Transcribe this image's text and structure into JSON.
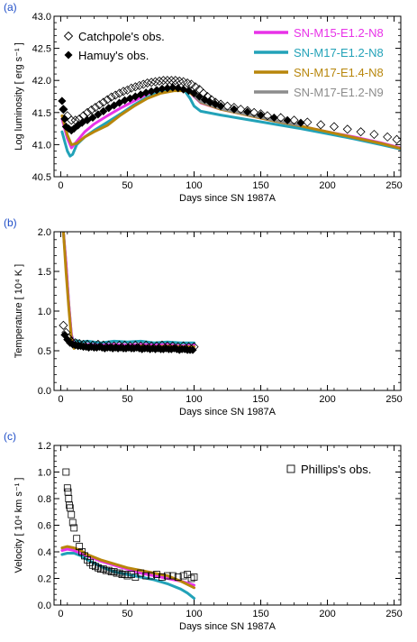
{
  "chart_data": [
    {
      "panel_label": "(a)",
      "type": "line",
      "xlabel": "Days since SN 1987A",
      "ylabel": "Log luminosity [ erg s⁻¹ ]",
      "xlim": [
        -5,
        255
      ],
      "ylim": [
        40.5,
        43.0
      ],
      "xticks": [
        0,
        50,
        100,
        150,
        200,
        250
      ],
      "yticks": [
        40.5,
        41.0,
        41.5,
        42.0,
        42.5,
        43.0
      ],
      "ytick_labels": [
        "40.5",
        "41.0",
        "41.5",
        "42.0",
        "42.5",
        "43.0"
      ],
      "legend_markers": [
        {
          "name": "Catchpole's obs.",
          "marker": "open-diamond"
        },
        {
          "name": "Hamuy's obs.",
          "marker": "filled-diamond"
        }
      ],
      "legend_lines": [
        {
          "name": "SN-M15-E1.2-N8",
          "color": "#e832e8"
        },
        {
          "name": "SN-M17-E1.2-N8",
          "color": "#22a2b8"
        },
        {
          "name": "SN-M17-E1.4-N8",
          "color": "#b8860b"
        },
        {
          "name": "SN-M17-E1.2-N9",
          "color": "#8c8c8c"
        }
      ],
      "series": [
        {
          "name": "SN-M15-E1.2-N8",
          "color": "#e832e8",
          "width": 3,
          "x": [
            1,
            3,
            5,
            8,
            12,
            18,
            25,
            35,
            45,
            55,
            65,
            75,
            85,
            95,
            100,
            105,
            120,
            140,
            160,
            180,
            200,
            220,
            240,
            255
          ],
          "y": [
            41.4,
            41.25,
            41.1,
            40.95,
            41.05,
            41.2,
            41.32,
            41.45,
            41.57,
            41.68,
            41.79,
            41.86,
            41.88,
            41.85,
            41.75,
            41.65,
            41.55,
            41.46,
            41.37,
            41.29,
            41.2,
            41.12,
            41.03,
            40.95
          ]
        },
        {
          "name": "SN-M17-E1.2-N8",
          "color": "#22a2b8",
          "width": 3,
          "x": [
            1,
            3,
            5,
            7,
            9,
            12,
            18,
            25,
            35,
            45,
            55,
            65,
            75,
            85,
            93,
            97,
            100,
            105,
            120,
            140,
            160,
            180,
            200,
            220,
            240,
            255
          ],
          "y": [
            41.2,
            41.05,
            40.9,
            40.82,
            40.85,
            41.0,
            41.12,
            41.22,
            41.35,
            41.48,
            41.62,
            41.74,
            41.83,
            41.88,
            41.84,
            41.72,
            41.6,
            41.52,
            41.46,
            41.39,
            41.32,
            41.25,
            41.17,
            41.09,
            41.0,
            40.93
          ]
        },
        {
          "name": "SN-M17-E1.4-N8",
          "color": "#b8860b",
          "width": 3,
          "x": [
            1,
            3,
            5,
            8,
            12,
            18,
            25,
            35,
            45,
            55,
            65,
            75,
            85,
            95,
            100,
            105,
            120,
            140,
            160,
            180,
            200,
            220,
            240,
            255
          ],
          "y": [
            41.45,
            41.3,
            41.15,
            41.0,
            41.02,
            41.12,
            41.2,
            41.3,
            41.46,
            41.6,
            41.72,
            41.8,
            41.84,
            41.84,
            41.76,
            41.66,
            41.55,
            41.46,
            41.37,
            41.29,
            41.2,
            41.11,
            41.02,
            40.94
          ]
        },
        {
          "name": "SN-M17-E1.2-N9",
          "color": "#8c8c8c",
          "width": 3,
          "x": [
            100,
            105,
            120,
            140,
            160,
            180
          ],
          "y": [
            41.76,
            41.67,
            41.56,
            41.47,
            41.38,
            41.3
          ]
        }
      ],
      "scatter": [
        {
          "name": "Hamuy's obs.",
          "marker": "filled-diamond",
          "x": [
            1,
            2,
            3,
            4,
            6,
            8,
            10,
            13,
            16,
            20,
            24,
            28,
            32,
            36,
            40,
            44,
            48,
            52,
            56,
            60,
            64,
            68,
            72,
            76,
            80,
            84,
            88,
            92,
            96,
            100,
            104,
            108,
            112,
            116,
            120,
            130,
            140,
            150,
            160,
            170,
            180
          ],
          "y": [
            41.68,
            41.55,
            41.4,
            41.28,
            41.25,
            41.22,
            41.25,
            41.3,
            41.34,
            41.38,
            41.42,
            41.47,
            41.52,
            41.57,
            41.61,
            41.65,
            41.69,
            41.72,
            41.75,
            41.78,
            41.81,
            41.83,
            41.85,
            41.87,
            41.88,
            41.89,
            41.88,
            41.86,
            41.84,
            41.8,
            41.75,
            41.7,
            41.66,
            41.63,
            41.6,
            41.55,
            41.51,
            41.46,
            41.42,
            41.38,
            41.34
          ]
        },
        {
          "name": "Catchpole's obs.",
          "marker": "open-diamond",
          "x": [
            2,
            5,
            8,
            11,
            14,
            17,
            20,
            23,
            26,
            29,
            32,
            35,
            38,
            41,
            44,
            47,
            50,
            53,
            56,
            59,
            62,
            65,
            68,
            71,
            74,
            77,
            80,
            83,
            86,
            89,
            92,
            95,
            98,
            101,
            104,
            107,
            110,
            113,
            116,
            120,
            125,
            130,
            135,
            140,
            145,
            150,
            155,
            165,
            175,
            185,
            195,
            205,
            215,
            225,
            235,
            245,
            252
          ],
          "y": [
            41.55,
            41.45,
            41.38,
            41.38,
            41.4,
            41.45,
            41.5,
            41.54,
            41.58,
            41.62,
            41.66,
            41.7,
            41.74,
            41.77,
            41.8,
            41.83,
            41.85,
            41.88,
            41.9,
            41.92,
            41.94,
            41.96,
            41.97,
            41.98,
            41.99,
            42.0,
            42.0,
            42.0,
            42.0,
            41.99,
            41.98,
            41.96,
            41.94,
            41.9,
            41.86,
            41.8,
            41.75,
            41.7,
            41.66,
            41.63,
            41.6,
            41.58,
            41.55,
            41.53,
            41.5,
            41.48,
            41.45,
            41.42,
            41.38,
            41.35,
            41.31,
            41.28,
            41.24,
            41.2,
            41.16,
            41.12,
            41.08
          ]
        }
      ]
    },
    {
      "panel_label": "(b)",
      "type": "line",
      "xlabel": "Days since SN 1987A",
      "ylabel": "Temperature [ 10⁴ K ]",
      "xlim": [
        -5,
        255
      ],
      "ylim": [
        0.0,
        2.0
      ],
      "xticks": [
        0,
        50,
        100,
        150,
        200,
        250
      ],
      "yticks": [
        0.0,
        0.5,
        1.0,
        1.5,
        2.0
      ],
      "ytick_labels": [
        "0.0",
        "0.5",
        "1.0",
        "1.5",
        "2.0"
      ],
      "series": [
        {
          "name": "SN-M17-E1.2-N8",
          "color": "#22a2b8",
          "width": 3,
          "x": [
            2,
            4,
            6,
            8,
            10,
            12,
            15,
            20,
            30,
            40,
            50,
            60,
            70,
            80,
            90,
            100
          ],
          "y": [
            2.0,
            1.6,
            1.1,
            0.7,
            0.6,
            0.63,
            0.61,
            0.62,
            0.6,
            0.62,
            0.61,
            0.62,
            0.6,
            0.61,
            0.6,
            0.6
          ]
        },
        {
          "name": "SN-M15-E1.2-N8",
          "color": "#e832e8",
          "width": 3,
          "x": [
            2,
            4,
            6,
            8,
            10,
            12,
            15,
            20,
            30,
            40,
            50,
            60,
            70,
            80,
            90,
            100
          ],
          "y": [
            2.0,
            1.6,
            1.1,
            0.7,
            0.56,
            0.58,
            0.57,
            0.58,
            0.57,
            0.58,
            0.57,
            0.58,
            0.57,
            0.58,
            0.56,
            0.57
          ]
        },
        {
          "name": "SN-M17-E1.4-N8",
          "color": "#b8860b",
          "width": 3,
          "x": [
            2,
            4,
            6,
            8,
            10,
            12,
            15,
            20,
            30,
            40,
            50,
            60,
            70,
            80,
            90,
            100
          ],
          "y": [
            2.0,
            1.5,
            1.05,
            0.65,
            0.53,
            0.57,
            0.55,
            0.56,
            0.55,
            0.56,
            0.55,
            0.56,
            0.55,
            0.56,
            0.55,
            0.55
          ]
        }
      ],
      "scatter": [
        {
          "name": "Hamuy's obs.",
          "marker": "filled-diamond",
          "x": [
            3,
            5,
            7,
            9,
            11,
            13,
            15,
            17,
            19,
            21,
            23,
            25,
            27,
            29,
            31,
            33,
            35,
            37,
            39,
            41,
            43,
            45,
            47,
            49,
            51,
            53,
            55,
            57,
            59,
            61,
            63,
            65,
            67,
            69,
            71,
            73,
            75,
            77,
            79,
            81,
            83,
            85,
            87,
            89,
            91,
            93,
            95,
            97,
            99
          ],
          "y": [
            0.7,
            0.64,
            0.6,
            0.58,
            0.57,
            0.56,
            0.56,
            0.55,
            0.55,
            0.54,
            0.55,
            0.54,
            0.54,
            0.55,
            0.54,
            0.53,
            0.54,
            0.54,
            0.53,
            0.54,
            0.53,
            0.54,
            0.53,
            0.53,
            0.54,
            0.53,
            0.53,
            0.54,
            0.53,
            0.52,
            0.53,
            0.53,
            0.52,
            0.53,
            0.52,
            0.53,
            0.52,
            0.52,
            0.53,
            0.52,
            0.52,
            0.53,
            0.52,
            0.51,
            0.52,
            0.52,
            0.51,
            0.51,
            0.51
          ]
        },
        {
          "name": "Catchpole's obs.",
          "marker": "open-diamond",
          "x": [
            2,
            4,
            6,
            8,
            11,
            14,
            17,
            20,
            24,
            28,
            32,
            36,
            40,
            44,
            48,
            52,
            56,
            60,
            64,
            68,
            72,
            76,
            80,
            84,
            88,
            92,
            96,
            100
          ],
          "y": [
            0.82,
            0.73,
            0.66,
            0.62,
            0.6,
            0.59,
            0.58,
            0.58,
            0.57,
            0.58,
            0.57,
            0.57,
            0.56,
            0.57,
            0.57,
            0.56,
            0.57,
            0.56,
            0.57,
            0.56,
            0.56,
            0.57,
            0.56,
            0.56,
            0.55,
            0.56,
            0.55,
            0.55
          ]
        }
      ]
    },
    {
      "panel_label": "(c)",
      "type": "line",
      "xlabel": "Days since SN 1987A",
      "ylabel": "Velocity [ 10⁴ km s⁻¹ ]",
      "xlim": [
        -5,
        255
      ],
      "ylim": [
        0.0,
        1.2
      ],
      "xticks": [
        0,
        50,
        100,
        150,
        200,
        250
      ],
      "yticks": [
        0.0,
        0.2,
        0.4,
        0.6,
        0.8,
        1.0,
        1.2
      ],
      "ytick_labels": [
        "0.0",
        "0.2",
        "0.4",
        "0.6",
        "0.8",
        "1.0",
        "1.2"
      ],
      "legend_markers": [
        {
          "name": "Phillips's obs.",
          "marker": "open-square"
        }
      ],
      "series": [
        {
          "name": "SN-M17-E1.2-N8",
          "color": "#22a2b8",
          "width": 3,
          "x": [
            1,
            5,
            10,
            15,
            20,
            30,
            40,
            50,
            60,
            70,
            80,
            90,
            95,
            100
          ],
          "y": [
            0.38,
            0.39,
            0.39,
            0.37,
            0.34,
            0.29,
            0.25,
            0.23,
            0.21,
            0.19,
            0.16,
            0.12,
            0.09,
            0.05
          ]
        },
        {
          "name": "SN-M15-E1.2-N8",
          "color": "#e832e8",
          "width": 3,
          "x": [
            1,
            5,
            10,
            15,
            20,
            30,
            40,
            50,
            60,
            70,
            80,
            90,
            100
          ],
          "y": [
            0.41,
            0.42,
            0.41,
            0.39,
            0.37,
            0.33,
            0.3,
            0.27,
            0.24,
            0.22,
            0.2,
            0.18,
            0.15
          ]
        },
        {
          "name": "SN-M17-E1.4-N8",
          "color": "#b8860b",
          "width": 3,
          "x": [
            1,
            5,
            10,
            15,
            20,
            30,
            40,
            50,
            60,
            70,
            80,
            90,
            100
          ],
          "y": [
            0.43,
            0.44,
            0.43,
            0.41,
            0.38,
            0.34,
            0.31,
            0.28,
            0.26,
            0.24,
            0.22,
            0.18,
            0.13
          ]
        }
      ],
      "scatter": [
        {
          "name": "Phillips's obs.",
          "marker": "open-square",
          "x": [
            4,
            5,
            5.5,
            6,
            6.5,
            7,
            8,
            9,
            10,
            12,
            14,
            16,
            18,
            20,
            22,
            24,
            26,
            28,
            30,
            32,
            34,
            36,
            38,
            40,
            42,
            44,
            46,
            48,
            50,
            53,
            56,
            60,
            64,
            68,
            72,
            76,
            80,
            84,
            88,
            92,
            95,
            98,
            100
          ],
          "y": [
            1.0,
            0.88,
            0.85,
            0.8,
            0.75,
            0.73,
            0.68,
            0.62,
            0.58,
            0.5,
            0.44,
            0.4,
            0.37,
            0.34,
            0.32,
            0.3,
            0.29,
            0.28,
            0.27,
            0.27,
            0.26,
            0.26,
            0.25,
            0.25,
            0.24,
            0.24,
            0.23,
            0.23,
            0.22,
            0.23,
            0.21,
            0.24,
            0.22,
            0.22,
            0.23,
            0.21,
            0.22,
            0.22,
            0.21,
            0.22,
            0.23,
            0.2,
            0.21
          ]
        }
      ]
    }
  ]
}
